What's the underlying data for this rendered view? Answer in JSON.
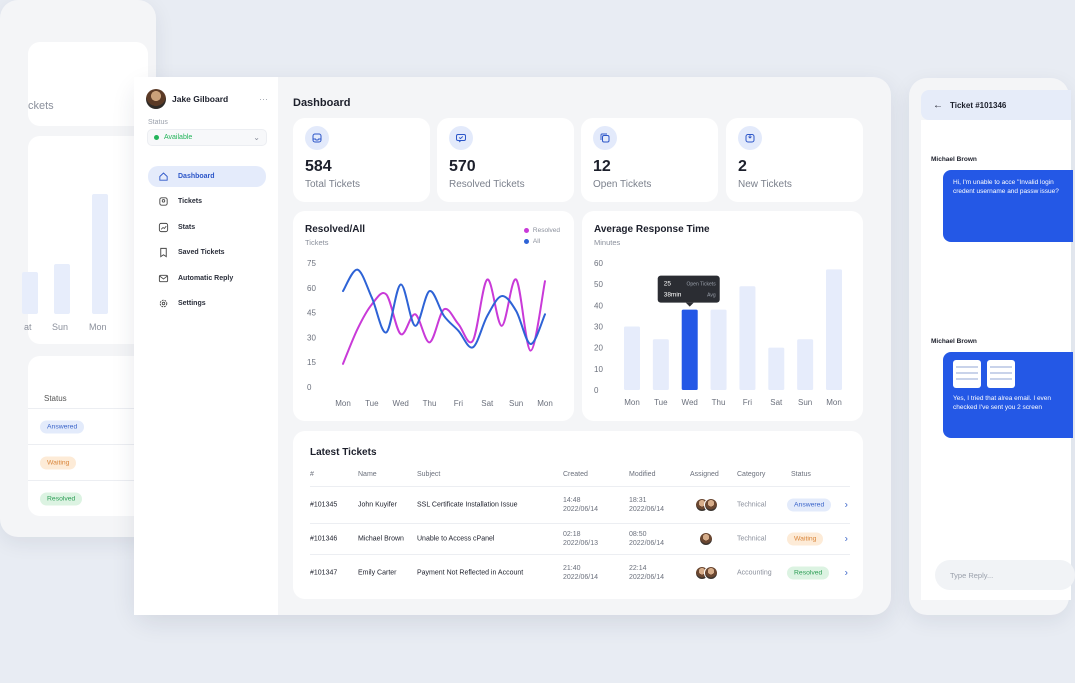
{
  "left_panel": {
    "stat_label": "ckets",
    "x_labels": [
      "at",
      "Sun",
      "Mon"
    ],
    "status_header": "Status",
    "statuses": [
      {
        "label": "Answered",
        "kind": "answered"
      },
      {
        "label": "Waiting",
        "kind": "waiting"
      },
      {
        "label": "Resolved",
        "kind": "resolved"
      }
    ]
  },
  "sidebar": {
    "user_name": "Jake Gilboard",
    "more": "···",
    "status_label": "Status",
    "status_value": "Available",
    "items": [
      {
        "label": "Dashboard",
        "icon": "home-icon",
        "active": true
      },
      {
        "label": "Tickets",
        "icon": "ticket-icon"
      },
      {
        "label": "Stats",
        "icon": "stats-icon"
      },
      {
        "label": "Saved Tickets",
        "icon": "bookmark-icon"
      },
      {
        "label": "Automatic Reply",
        "icon": "mail-icon"
      },
      {
        "label": "Settings",
        "icon": "gear-icon"
      }
    ]
  },
  "header": {
    "title": "Dashboard"
  },
  "stats": [
    {
      "value": "584",
      "label": "Total Tickets",
      "icon": "inbox-icon"
    },
    {
      "value": "570",
      "label": "Resolved Tickets",
      "icon": "resolved-icon"
    },
    {
      "value": "12",
      "label": "Open Tickets",
      "icon": "copy-icon"
    },
    {
      "value": "2",
      "label": "New Tickets",
      "icon": "new-inbox-icon"
    }
  ],
  "colors": {
    "accent": "#2458e6",
    "resolved_line": "#c93ad8",
    "all_line": "#2e63d6",
    "bar": "#e6ecfb",
    "bar_active": "#2458e6"
  },
  "chart_data": [
    {
      "type": "line",
      "title": "Resolved/All",
      "ylabel": "Tickets",
      "categories": [
        "Mon",
        "Tue",
        "Wed",
        "Thu",
        "Fri",
        "Sat",
        "Sun",
        "Mon"
      ],
      "x": [
        0,
        0.5,
        1,
        1.5,
        2,
        2.5,
        3,
        3.5,
        4,
        4.5,
        5,
        5.5,
        6,
        6.5,
        7
      ],
      "y_ticks": [
        75,
        60,
        45,
        30,
        15,
        0
      ],
      "ylim": [
        0,
        75
      ],
      "legend_position": "top-right",
      "series": [
        {
          "name": "Resolved",
          "values": [
            14,
            35,
            50,
            56,
            32,
            44,
            27,
            47,
            38,
            28,
            65,
            37,
            65,
            22,
            64
          ]
        },
        {
          "name": "All",
          "values": [
            58,
            71,
            54,
            33,
            62,
            37,
            58,
            43,
            34,
            24,
            43,
            55,
            46,
            26,
            44
          ]
        }
      ]
    },
    {
      "type": "bar",
      "title": "Average Response Time",
      "ylabel": "Minutes",
      "categories": [
        "Mon",
        "Tue",
        "Wed",
        "Thu",
        "Fri",
        "Sat",
        "Sun",
        "Mon"
      ],
      "values": [
        30,
        24,
        38,
        38,
        49,
        20,
        24,
        57
      ],
      "y_ticks": [
        60,
        50,
        40,
        30,
        20,
        10,
        0
      ],
      "ylim": [
        0,
        60
      ],
      "highlight_index": 2,
      "tooltip": {
        "count": "25",
        "count_label": "Open Tickets",
        "time": "38min",
        "time_label": "Avg"
      }
    }
  ],
  "table": {
    "title": "Latest Tickets",
    "headers": [
      "#",
      "Name",
      "Subject",
      "Created",
      "Modified",
      "Assigned",
      "Category",
      "Status"
    ],
    "rows": [
      {
        "id": "#101345",
        "name": "John Kuyifer",
        "subject": "SSL Certificate Installation Issue",
        "created_time": "14:48",
        "created_date": "2022/06/14",
        "modified_time": "18:31",
        "modified_date": "2022/06/14",
        "assigned": 2,
        "category": "Technical",
        "status": "Answered",
        "kind": "answered"
      },
      {
        "id": "#101346",
        "name": "Michael Brown",
        "subject": "Unable to Access cPanel",
        "created_time": "02:18",
        "created_date": "2022/06/13",
        "modified_time": "08:50",
        "modified_date": "2022/06/14",
        "assigned": 1,
        "category": "Technical",
        "status": "Waiting",
        "kind": "waiting"
      },
      {
        "id": "#101347",
        "name": "Emily Carter",
        "subject": "Payment Not Reflected in Account",
        "created_time": "21:40",
        "created_date": "2022/06/14",
        "modified_time": "22:14",
        "modified_date": "2022/06/14",
        "assigned": 2,
        "category": "Accounting",
        "status": "Resolved",
        "kind": "resolved"
      }
    ]
  },
  "ticket_panel": {
    "title": "Ticket #101346",
    "messages": [
      {
        "name": "Michael Brown",
        "text": "Hi, I'm unable to acce \"Invalid login credent username and passw issue?"
      },
      {
        "name": "Michael Brown",
        "text": "Yes, I tried that alrea email. I even checked I've sent you 2 screen"
      }
    ],
    "reply_placeholder": "Type Reply..."
  }
}
